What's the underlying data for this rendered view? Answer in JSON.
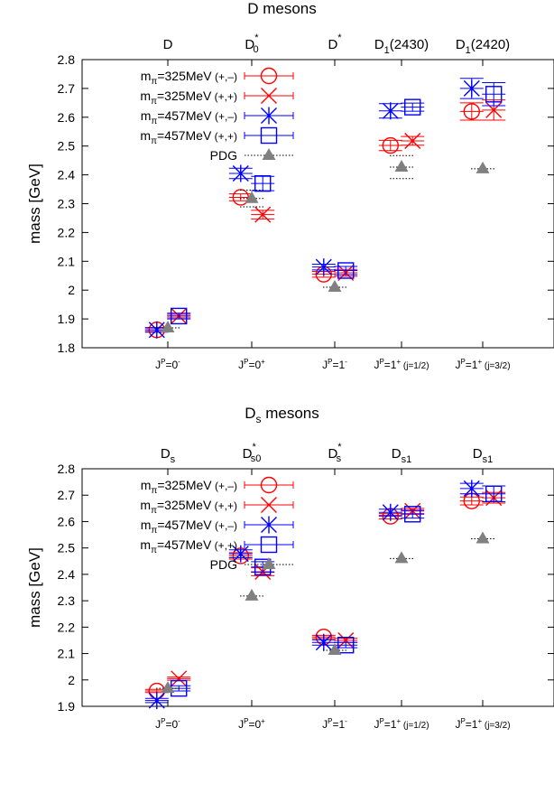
{
  "chart_data": [
    {
      "type": "scatter",
      "title": "D mesons",
      "title_sub": "",
      "ylabel": "mass [GeV]",
      "ylim": [
        1.8,
        2.8
      ],
      "yticks": [
        "1.8",
        "1.9",
        "2",
        "2.1",
        "2.2",
        "2.3",
        "2.4",
        "2.5",
        "2.6",
        "2.7",
        "2.8"
      ],
      "categories": [
        {
          "main": "J",
          "sup": "P",
          "rest": "=0",
          "sup2": "-",
          "tail": ""
        },
        {
          "main": "J",
          "sup": "P",
          "rest": "=0",
          "sup2": "+",
          "tail": ""
        },
        {
          "main": "J",
          "sup": "P",
          "rest": "=1",
          "sup2": "-",
          "tail": ""
        },
        {
          "main": "J",
          "sup": "P",
          "rest": "=1",
          "sup2": "+",
          "tail": " (j=1/2)"
        },
        {
          "main": "J",
          "sup": "P",
          "rest": "=1",
          "sup2": "+",
          "tail": " (j=3/2)"
        }
      ],
      "top_labels": [
        {
          "main": "D",
          "sub": "",
          "sup": "",
          "tail": ""
        },
        {
          "main": "D",
          "sub": "0",
          "sup": "*",
          "tail": ""
        },
        {
          "main": "D",
          "sub": "",
          "sup": "*",
          "tail": ""
        },
        {
          "main": "D",
          "sub": "1",
          "sup": "",
          "tail": "(2430)"
        },
        {
          "main": "D",
          "sub": "1",
          "sup": "",
          "tail": "(2420)"
        }
      ],
      "legend": [
        {
          "pre": "m",
          "sub": "π",
          "post": "=325MeV",
          "tag": "(+,–)",
          "marker": "circle",
          "color": "#ff0000"
        },
        {
          "pre": "m",
          "sub": "π",
          "post": "=325MeV",
          "tag": "(+,+)",
          "marker": "x",
          "color": "#ff0000"
        },
        {
          "pre": "m",
          "sub": "π",
          "post": "=457MeV",
          "tag": "(+,–)",
          "marker": "star",
          "color": "#0000ff"
        },
        {
          "pre": "m",
          "sub": "π",
          "post": "=457MeV",
          "tag": "(+,+)",
          "marker": "square",
          "color": "#0000ff"
        },
        {
          "pre": "",
          "sub": "",
          "post": "PDG",
          "tag": "",
          "marker": "triangle",
          "color": "#808080"
        }
      ],
      "series": [
        {
          "marker": "circle",
          "color": "#ff0000",
          "offset": -0.14,
          "values": [
            1.862,
            2.322,
            2.055,
            2.502,
            2.62
          ],
          "errors": [
            0.006,
            0.012,
            0.01,
            0.018,
            0.03
          ]
        },
        {
          "marker": "x",
          "color": "#ff0000",
          "offset": 0.14,
          "values": [
            1.91,
            2.262,
            2.06,
            2.518,
            2.625
          ],
          "errors": [
            0.006,
            0.015,
            0.012,
            0.015,
            0.035
          ]
        },
        {
          "marker": "star",
          "color": "#0000ff",
          "offset": -0.14,
          "values": [
            1.862,
            2.405,
            2.08,
            2.622,
            2.7
          ],
          "errors": [
            0.008,
            0.018,
            0.01,
            0.025,
            0.035
          ]
        },
        {
          "marker": "square",
          "color": "#0000ff",
          "offset": 0.14,
          "values": [
            1.91,
            2.37,
            2.068,
            2.635,
            2.68
          ],
          "errors": [
            0.01,
            0.025,
            0.014,
            0.014,
            0.04
          ]
        },
        {
          "marker": "triangle",
          "color": "#808080",
          "offset": 0.0,
          "values": [
            1.869,
            2.318,
            2.01,
            2.427,
            2.421
          ],
          "errors": [
            0.0,
            0.029,
            0.0,
            0.04,
            0.0
          ]
        }
      ]
    },
    {
      "type": "scatter",
      "title": "D",
      "title_sub": "s",
      "title_rest": " mesons",
      "ylabel": "mass [GeV]",
      "ylim": [
        1.9,
        2.8
      ],
      "yticks": [
        "1.9",
        "2",
        "2.1",
        "2.2",
        "2.3",
        "2.4",
        "2.5",
        "2.6",
        "2.7",
        "2.8"
      ],
      "categories": [
        {
          "main": "J",
          "sup": "P",
          "rest": "=0",
          "sup2": "-",
          "tail": ""
        },
        {
          "main": "J",
          "sup": "P",
          "rest": "=0",
          "sup2": "+",
          "tail": ""
        },
        {
          "main": "J",
          "sup": "P",
          "rest": "=1",
          "sup2": "-",
          "tail": ""
        },
        {
          "main": "J",
          "sup": "P",
          "rest": "=1",
          "sup2": "+",
          "tail": " (j=1/2)"
        },
        {
          "main": "J",
          "sup": "P",
          "rest": "=1",
          "sup2": "+",
          "tail": " (j=3/2)"
        }
      ],
      "top_labels": [
        {
          "main": "D",
          "sub": "s",
          "sup": "",
          "tail": ""
        },
        {
          "main": "D",
          "sub": "s0",
          "sup": "*",
          "tail": ""
        },
        {
          "main": "D",
          "sub": "s",
          "sup": "*",
          "tail": ""
        },
        {
          "main": "D",
          "sub": "s1",
          "sup": "",
          "tail": ""
        },
        {
          "main": "D",
          "sub": "s1",
          "sup": "",
          "tail": ""
        }
      ],
      "legend": [
        {
          "pre": "m",
          "sub": "π",
          "post": "=325MeV",
          "tag": "(+,–)",
          "marker": "circle",
          "color": "#ff0000"
        },
        {
          "pre": "m",
          "sub": "π",
          "post": "=325MeV",
          "tag": "(+,+)",
          "marker": "x",
          "color": "#ff0000"
        },
        {
          "pre": "m",
          "sub": "π",
          "post": "=457MeV",
          "tag": "(+,–)",
          "marker": "star",
          "color": "#0000ff"
        },
        {
          "pre": "m",
          "sub": "π",
          "post": "=457MeV",
          "tag": "(+,+)",
          "marker": "square",
          "color": "#0000ff"
        },
        {
          "pre": "",
          "sub": "",
          "post": "PDG",
          "tag": "",
          "marker": "triangle",
          "color": "#808080"
        }
      ],
      "series": [
        {
          "marker": "circle",
          "color": "#ff0000",
          "offset": -0.14,
          "values": [
            1.958,
            2.47,
            2.163,
            2.62,
            2.678
          ],
          "errors": [
            0.006,
            0.012,
            0.006,
            0.01,
            0.015
          ]
        },
        {
          "marker": "x",
          "color": "#ff0000",
          "offset": 0.14,
          "values": [
            2.005,
            2.41,
            2.15,
            2.64,
            2.69
          ],
          "errors": [
            0.006,
            0.015,
            0.008,
            0.01,
            0.02
          ]
        },
        {
          "marker": "star",
          "color": "#0000ff",
          "offset": -0.14,
          "values": [
            1.922,
            2.478,
            2.142,
            2.635,
            2.725
          ],
          "errors": [
            0.008,
            0.015,
            0.01,
            0.012,
            0.02
          ]
        },
        {
          "marker": "square",
          "color": "#0000ff",
          "offset": 0.14,
          "values": [
            1.968,
            2.428,
            2.132,
            2.628,
            2.705
          ],
          "errors": [
            0.01,
            0.02,
            0.01,
            0.015,
            0.03
          ]
        },
        {
          "marker": "triangle",
          "color": "#808080",
          "offset": 0.0,
          "values": [
            1.968,
            2.318,
            2.112,
            2.46,
            2.535
          ],
          "errors": [
            0.0,
            0.0,
            0.0,
            0.0,
            0.0
          ]
        }
      ]
    }
  ]
}
